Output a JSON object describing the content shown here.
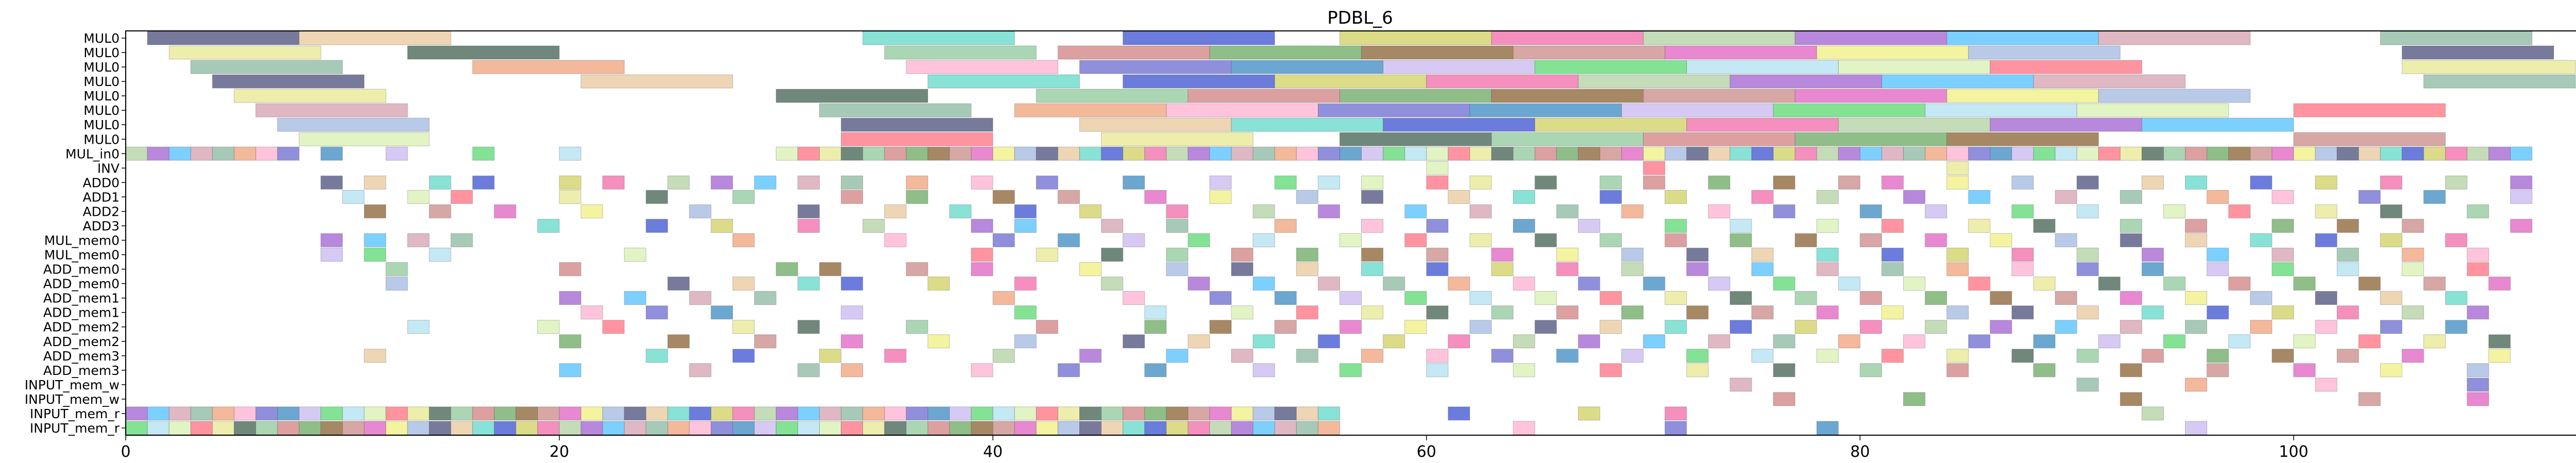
{
  "chart_data": {
    "type": "gantt",
    "title": "PDBL_6",
    "xlabel": "",
    "ylabel": "",
    "xlim": [
      0,
      113.5
    ],
    "grid": false,
    "x_ticks": [
      0,
      20,
      40,
      60,
      80,
      100
    ],
    "x_tick_labels": [
      "0",
      "20",
      "40",
      "60",
      "80",
      "100"
    ],
    "rows": [
      "MUL0",
      "MUL0",
      "MUL0",
      "MUL0",
      "MUL0",
      "MUL0",
      "MUL0",
      "MUL0",
      "MUL_in0",
      "INV",
      "ADD0",
      "ADD1",
      "ADD2",
      "ADD3",
      "MUL_mem0",
      "MUL_mem0",
      "ADD_mem0",
      "ADD_mem0",
      "ADD_mem1",
      "ADD_mem1",
      "ADD_mem2",
      "ADD_mem2",
      "ADD_mem3",
      "ADD_mem3",
      "INPUT_mem_w",
      "INPUT_mem_w",
      "INPUT_mem_r",
      "INPUT_mem_r"
    ],
    "palette": [
      "#4a4e7a",
      "#6a6ad0",
      "#c88a86",
      "#d4a0b0",
      "#8fc89a",
      "#f06aa8",
      "#d8f0b0",
      "#e8c89c",
      "#3a8ac0",
      "#e060c0",
      "#8ab8a0",
      "#d08080",
      "#b0d0a0",
      "#ff7080",
      "#60d8c8",
      "#c8b8f0",
      "#f0f080",
      "#f0a078",
      "#6aa860",
      "#a060d0",
      "#e8e890",
      "#3a50d0",
      "#5ad870",
      "#a0b8e0",
      "#ffb0d0",
      "#8a6030",
      "#50c0ff",
      "#406050",
      "#d0d060",
      "#b0e0f0"
    ],
    "long_bars": [
      [
        0,
        1,
        8
      ],
      [
        0,
        8,
        15
      ],
      [
        0,
        34,
        41
      ],
      [
        0,
        46,
        53
      ],
      [
        0,
        56,
        63
      ],
      [
        0,
        63,
        70
      ],
      [
        0,
        70,
        77
      ],
      [
        0,
        77,
        84
      ],
      [
        0,
        84,
        91
      ],
      [
        0,
        91,
        98
      ],
      [
        0,
        104,
        111
      ],
      [
        1,
        2,
        9
      ],
      [
        1,
        13,
        20
      ],
      [
        1,
        35,
        42
      ],
      [
        1,
        43,
        50
      ],
      [
        1,
        50,
        57
      ],
      [
        1,
        57,
        64
      ],
      [
        1,
        64,
        71
      ],
      [
        1,
        71,
        78
      ],
      [
        1,
        78,
        85
      ],
      [
        1,
        85,
        92
      ],
      [
        1,
        105,
        112
      ],
      [
        2,
        3,
        10
      ],
      [
        2,
        16,
        23
      ],
      [
        2,
        36,
        43
      ],
      [
        2,
        44,
        51
      ],
      [
        2,
        51,
        58
      ],
      [
        2,
        58,
        65
      ],
      [
        2,
        65,
        72
      ],
      [
        2,
        72,
        79
      ],
      [
        2,
        79,
        86
      ],
      [
        2,
        86,
        93
      ],
      [
        2,
        105,
        113
      ],
      [
        3,
        4,
        11
      ],
      [
        3,
        21,
        28
      ],
      [
        3,
        37,
        44
      ],
      [
        3,
        46,
        53
      ],
      [
        3,
        53,
        60
      ],
      [
        3,
        60,
        67
      ],
      [
        3,
        67,
        74
      ],
      [
        3,
        74,
        81
      ],
      [
        3,
        81,
        88
      ],
      [
        3,
        88,
        95
      ],
      [
        3,
        106,
        113
      ],
      [
        4,
        5,
        12
      ],
      [
        4,
        30,
        37
      ],
      [
        4,
        42,
        49
      ],
      [
        4,
        49,
        56
      ],
      [
        4,
        56,
        63
      ],
      [
        4,
        63,
        70
      ],
      [
        4,
        70,
        77
      ],
      [
        4,
        77,
        84
      ],
      [
        4,
        84,
        91
      ],
      [
        4,
        91,
        98
      ],
      [
        5,
        6,
        13
      ],
      [
        5,
        32,
        39
      ],
      [
        5,
        41,
        48
      ],
      [
        5,
        48,
        55
      ],
      [
        5,
        55,
        62
      ],
      [
        5,
        62,
        69
      ],
      [
        5,
        69,
        76
      ],
      [
        5,
        76,
        83
      ],
      [
        5,
        83,
        90
      ],
      [
        5,
        90,
        97
      ],
      [
        5,
        100,
        107
      ],
      [
        6,
        7,
        14
      ],
      [
        6,
        33,
        40
      ],
      [
        6,
        44,
        51
      ],
      [
        6,
        51,
        58
      ],
      [
        6,
        58,
        65
      ],
      [
        6,
        65,
        72
      ],
      [
        6,
        72,
        79
      ],
      [
        6,
        79,
        86
      ],
      [
        6,
        86,
        93
      ],
      [
        6,
        93,
        100
      ],
      [
        7,
        8,
        14
      ],
      [
        7,
        33,
        40
      ],
      [
        7,
        45,
        52
      ],
      [
        7,
        56,
        63
      ],
      [
        7,
        63,
        70
      ],
      [
        7,
        70,
        77
      ],
      [
        7,
        77,
        84
      ],
      [
        7,
        84,
        91
      ],
      [
        7,
        100,
        107
      ]
    ],
    "unit_rows": [
      {
        "row": 8,
        "starts": [
          0,
          1,
          2,
          3,
          4,
          5,
          6,
          7,
          9,
          12,
          16,
          20,
          30,
          31,
          32,
          33,
          34,
          35,
          36,
          37,
          38,
          39,
          40,
          41,
          42,
          43,
          44,
          45,
          46,
          47,
          48,
          49,
          50,
          51,
          52,
          53,
          54,
          55,
          56,
          57,
          58,
          59,
          60,
          61,
          62,
          63,
          64,
          65,
          66,
          67,
          68,
          69,
          70,
          71,
          72,
          73,
          74,
          75,
          76,
          77,
          78,
          79,
          80,
          81,
          82,
          83,
          84,
          85,
          86,
          87,
          88,
          89,
          90,
          91,
          92,
          93,
          94,
          95,
          96,
          97,
          98,
          99,
          100,
          101,
          102,
          103,
          104,
          105,
          106,
          107,
          108,
          109,
          110
        ]
      },
      {
        "row": 9,
        "starts": [
          60,
          70,
          84
        ]
      },
      {
        "row": 10,
        "starts": [
          9,
          11,
          14,
          16,
          20,
          22,
          25,
          27,
          29,
          31,
          33,
          36,
          39,
          42,
          46,
          50,
          53,
          55,
          57,
          60,
          62,
          65,
          68,
          70,
          73,
          76,
          79,
          81,
          84,
          87,
          90,
          93,
          95,
          98,
          101,
          104,
          107,
          110
        ]
      },
      {
        "row": 11,
        "starts": [
          10,
          13,
          15,
          20,
          24,
          28,
          33,
          36,
          40,
          43,
          47,
          50,
          54,
          57,
          61,
          64,
          68,
          71,
          75,
          78,
          82,
          85,
          89,
          92,
          96,
          99,
          103,
          106,
          110
        ]
      },
      {
        "row": 12,
        "starts": [
          11,
          14,
          17,
          21,
          26,
          31,
          35,
          38,
          41,
          44,
          48,
          52,
          55,
          59,
          62,
          66,
          69,
          73,
          76,
          80,
          83,
          87,
          90,
          94,
          97,
          101,
          104,
          108
        ]
      },
      {
        "row": 13,
        "starts": [
          19,
          24,
          27,
          31,
          34,
          39,
          41,
          45,
          48,
          53,
          57,
          60,
          64,
          67,
          71,
          74,
          78,
          81,
          85,
          88,
          92,
          95,
          99,
          102,
          105,
          110
        ]
      },
      {
        "row": 14,
        "starts": [
          9,
          11,
          13,
          15,
          28,
          35,
          40,
          43,
          46,
          49,
          52,
          56,
          59,
          62,
          65,
          68,
          71,
          74,
          77,
          80,
          83,
          86,
          89,
          92,
          95,
          98,
          101,
          104,
          107
        ]
      },
      {
        "row": 15,
        "starts": [
          9,
          11,
          14,
          23,
          39,
          42,
          45,
          48,
          51,
          54,
          57,
          60,
          63,
          66,
          69,
          72,
          75,
          78,
          81,
          84,
          87,
          90,
          93,
          96,
          99,
          102,
          105,
          108
        ]
      },
      {
        "row": 16,
        "starts": [
          12,
          20,
          30,
          32,
          36,
          39,
          44,
          48,
          51,
          54,
          57,
          60,
          63,
          66,
          69,
          72,
          75,
          78,
          81,
          84,
          87,
          90,
          93,
          96,
          99,
          102,
          105,
          108
        ]
      },
      {
        "row": 17,
        "starts": [
          12,
          25,
          28,
          31,
          33,
          37,
          41,
          45,
          49,
          52,
          55,
          58,
          61,
          64,
          67,
          70,
          73,
          76,
          79,
          82,
          85,
          88,
          91,
          94,
          97,
          100,
          103,
          106,
          109
        ]
      },
      {
        "row": 18,
        "starts": [
          20,
          23,
          26,
          29,
          40,
          46,
          50,
          53,
          56,
          59,
          62,
          65,
          68,
          71,
          74,
          77,
          80,
          83,
          86,
          89,
          92,
          95,
          98,
          101,
          104,
          107
        ]
      },
      {
        "row": 19,
        "starts": [
          21,
          24,
          27,
          33,
          41,
          47,
          51,
          54,
          57,
          60,
          63,
          66,
          69,
          72,
          75,
          78,
          81,
          84,
          87,
          90,
          93,
          96,
          99,
          102,
          105,
          108
        ]
      },
      {
        "row": 20,
        "starts": [
          13,
          19,
          22,
          28,
          31,
          36,
          42,
          47,
          50,
          53,
          56,
          59,
          62,
          65,
          68,
          71,
          74,
          77,
          80,
          83,
          86,
          89,
          92,
          95,
          98,
          101,
          104,
          107
        ]
      },
      {
        "row": 21,
        "starts": [
          20,
          25,
          29,
          33,
          37,
          41,
          46,
          49,
          52,
          55,
          58,
          61,
          64,
          67,
          70,
          73,
          76,
          79,
          82,
          85,
          88,
          91,
          94,
          97,
          100,
          103,
          106,
          109
        ]
      },
      {
        "row": 22,
        "starts": [
          11,
          24,
          28,
          32,
          35,
          40,
          44,
          48,
          51,
          54,
          57,
          60,
          63,
          66,
          69,
          72,
          75,
          78,
          81,
          84,
          87,
          90,
          93,
          96,
          99,
          102,
          105,
          109
        ]
      },
      {
        "row": 23,
        "starts": [
          20,
          26,
          31,
          33,
          39,
          43,
          47,
          52,
          56,
          60,
          64,
          68,
          72,
          76,
          80,
          84,
          88,
          92,
          96,
          100,
          104,
          108
        ]
      },
      {
        "row": 24,
        "starts": [
          74,
          90,
          95,
          101,
          108
        ]
      },
      {
        "row": 25,
        "starts": [
          76,
          82,
          92,
          103,
          108
        ]
      },
      {
        "row": 26,
        "starts": [
          0,
          1,
          2,
          3,
          4,
          5,
          6,
          7,
          8,
          9,
          10,
          11,
          12,
          13,
          14,
          15,
          16,
          17,
          18,
          19,
          20,
          21,
          22,
          23,
          24,
          25,
          26,
          27,
          28,
          29,
          30,
          31,
          32,
          33,
          34,
          35,
          36,
          37,
          38,
          39,
          40,
          41,
          42,
          43,
          44,
          45,
          46,
          47,
          48,
          49,
          50,
          51,
          52,
          53,
          54,
          55,
          61,
          67,
          71,
          93
        ]
      },
      {
        "row": 27,
        "starts": [
          0,
          1,
          2,
          3,
          4,
          5,
          6,
          7,
          8,
          9,
          10,
          11,
          12,
          13,
          14,
          15,
          16,
          17,
          18,
          19,
          20,
          21,
          22,
          23,
          24,
          25,
          26,
          27,
          28,
          29,
          30,
          31,
          32,
          33,
          34,
          35,
          36,
          37,
          38,
          39,
          40,
          41,
          42,
          43,
          44,
          45,
          46,
          47,
          48,
          49,
          50,
          51,
          52,
          53,
          54,
          55,
          64,
          71,
          78,
          95
        ]
      }
    ]
  }
}
